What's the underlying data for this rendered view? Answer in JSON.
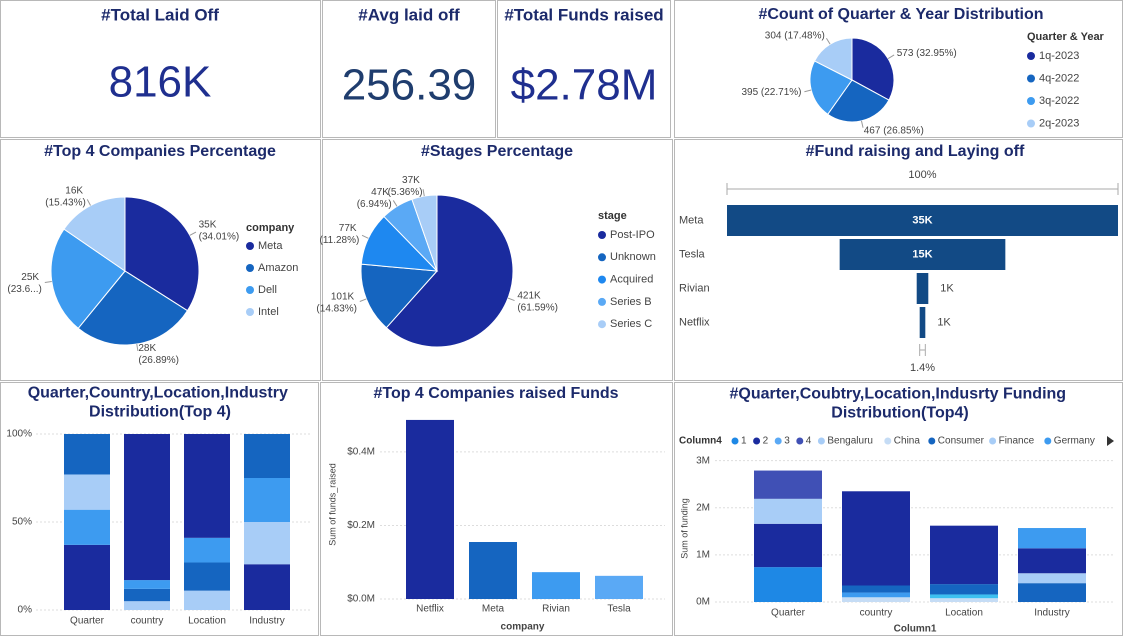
{
  "cards": [
    {
      "title": "#Total Laid Off",
      "value": "816K"
    },
    {
      "title": "#Avg laid off",
      "value": "256.39"
    },
    {
      "title": "#Total Funds raised",
      "value": "$2.78M"
    }
  ],
  "chart_data": [
    {
      "type": "pie",
      "title": "#Count of Quarter & Year Distribution",
      "legend_title": "Quarter & Year",
      "categories": [
        "1q-2023",
        "4q-2022",
        "3q-2022",
        "2q-2023"
      ],
      "values": [
        573,
        467,
        395,
        304
      ],
      "value_labels": [
        "573 (32.95%)",
        "467 (26.85%)",
        "395 (22.71%)",
        "304 (17.48%)"
      ],
      "colors": [
        "#1a2b9e",
        "#1565c0",
        "#3d9bf0",
        "#a8cdf7"
      ]
    },
    {
      "type": "pie",
      "title": "#Top 4 Companies Percentage",
      "legend_title": "company",
      "categories": [
        "Meta",
        "Amazon",
        "Dell",
        "Intel"
      ],
      "values": [
        35303,
        27912,
        24570,
        16016
      ],
      "value_labels": [
        "35K (34.01%)",
        "28K (26.89%)",
        "25K (23.6...)",
        "16K (15.43%)"
      ],
      "colors": [
        "#1a2b9e",
        "#1565c0",
        "#3d9bf0",
        "#a8cdf7"
      ]
    },
    {
      "type": "pie",
      "title": "#Stages Percentage",
      "legend_title": "stage",
      "categories": [
        "Post-IPO",
        "Unknown",
        "Acquired",
        "Series B",
        "Series C"
      ],
      "values": [
        421000,
        101400,
        77100,
        47400,
        36600
      ],
      "value_labels": [
        "421K (61.59%)",
        "101K (14.83%)",
        "77K (11.28%)",
        "47K (6.94%)",
        "37K (5.36%)"
      ],
      "colors": [
        "#1a2b9e",
        "#1565c0",
        "#1e88f0",
        "#5aa9f5",
        "#a8cdf7"
      ]
    },
    {
      "type": "funnel",
      "title": "#Fund raising and Laying off",
      "top_label": "100%",
      "bottom_label": "1.4%",
      "categories": [
        "Meta",
        "Tesla",
        "Rivian",
        "Netflix"
      ],
      "values": [
        35400,
        15000,
        1050,
        510
      ],
      "value_labels": [
        "35K",
        "15K",
        "1K",
        "1K"
      ],
      "color": "#124a85"
    },
    {
      "type": "stacked_bar",
      "title": "Quarter,Country,Location,Industry Distribution(Top 4)",
      "categories": [
        "Quarter",
        "country",
        "Location",
        "Industry"
      ],
      "stacks": [
        [
          {
            "value": 37,
            "color": "#1a2b9e"
          },
          {
            "value": 20,
            "color": "#3d9bf0"
          },
          {
            "value": 20,
            "color": "#a8cdf7"
          },
          {
            "value": 23,
            "color": "#1565c0"
          }
        ],
        [
          {
            "value": 5,
            "color": "#a8cdf7"
          },
          {
            "value": 7,
            "color": "#1565c0"
          },
          {
            "value": 5,
            "color": "#3d9bf0"
          },
          {
            "value": 83,
            "color": "#1a2b9e"
          }
        ],
        [
          {
            "value": 11,
            "color": "#a8cdf7"
          },
          {
            "value": 16,
            "color": "#1565c0"
          },
          {
            "value": 14,
            "color": "#3d9bf0"
          },
          {
            "value": 59,
            "color": "#1a2b9e"
          }
        ],
        [
          {
            "value": 26,
            "color": "#1a2b9e"
          },
          {
            "value": 24,
            "color": "#a8cdf7"
          },
          {
            "value": 25,
            "color": "#3d9bf0"
          },
          {
            "value": 25,
            "color": "#1565c0"
          }
        ]
      ],
      "ylim": [
        0,
        100
      ],
      "yticks": [
        {
          "value": 0,
          "label": "0%"
        },
        {
          "value": 50,
          "label": "50%"
        },
        {
          "value": 100,
          "label": "100%"
        }
      ],
      "grid": true
    },
    {
      "type": "bar",
      "title": "#Top 4 Companies raised Funds",
      "y_label": "Sum of funds_raised",
      "x_label": "company",
      "categories": [
        "Netflix",
        "Meta",
        "Rivian",
        "Tesla"
      ],
      "values": [
        487000,
        155000,
        73000,
        63000
      ],
      "colors": [
        "#1a2b9e",
        "#1565c0",
        "#3d9bf0",
        "#5aa9f5"
      ],
      "ylim": [
        0,
        514000
      ],
      "yticks": [
        {
          "value": 0,
          "label": "$0.0M"
        },
        {
          "value": 200000,
          "label": "$0.2M"
        },
        {
          "value": 400000,
          "label": "$0.4M"
        }
      ],
      "grid": true
    },
    {
      "type": "stacked_bar",
      "title": "#Quarter,Coubtry,Location,Indusrty Funding Distribution(Top4)",
      "y_label": "Sum of funding",
      "x_label": "Column1",
      "legend_title": "Column4",
      "legend": [
        {
          "name": "1",
          "color": "#1e88e5"
        },
        {
          "name": "2",
          "color": "#1a2b9e"
        },
        {
          "name": "3",
          "color": "#5aa9f5"
        },
        {
          "name": "4",
          "color": "#4050b5"
        },
        {
          "name": "Bengaluru",
          "color": "#a8cdf7"
        },
        {
          "name": "China",
          "color": "#c5dcf5"
        },
        {
          "name": "Consumer",
          "color": "#1565c0"
        },
        {
          "name": "Finance",
          "color": "#a8cdf7"
        },
        {
          "name": "Germany",
          "color": "#3d9bf0"
        }
      ],
      "categories": [
        "Quarter",
        "country",
        "Location",
        "Industry"
      ],
      "stacks": [
        [
          {
            "value": 740000,
            "color": "#1e88e5"
          },
          {
            "value": 920000,
            "color": "#1a2b9e"
          },
          {
            "value": 530000,
            "color": "#a8cdf7"
          },
          {
            "value": 600000,
            "color": "#4050b5"
          }
        ],
        [
          {
            "value": 100000,
            "color": "#c5dcf5"
          },
          {
            "value": 100000,
            "color": "#3d9bf0"
          },
          {
            "value": 150000,
            "color": "#1565c0"
          },
          {
            "value": 2000000,
            "color": "#1a2b9e"
          }
        ],
        [
          {
            "value": 80000,
            "color": "#c5dcf5"
          },
          {
            "value": 80000,
            "color": "#3dc0f0"
          },
          {
            "value": 220000,
            "color": "#1565c0"
          },
          {
            "value": 1240000,
            "color": "#1a2b9e"
          }
        ],
        [
          {
            "value": 400000,
            "color": "#1565c0"
          },
          {
            "value": 210000,
            "color": "#a8cdf7"
          },
          {
            "value": 530000,
            "color": "#1a2b9e"
          },
          {
            "value": 430000,
            "color": "#3d9bf0"
          }
        ]
      ],
      "ylim": [
        0,
        3120000
      ],
      "yticks": [
        {
          "value": 0,
          "label": "0M"
        },
        {
          "value": 1000000,
          "label": "1M"
        },
        {
          "value": 2000000,
          "label": "2M"
        },
        {
          "value": 3000000,
          "label": "3M"
        }
      ],
      "grid": true
    }
  ]
}
